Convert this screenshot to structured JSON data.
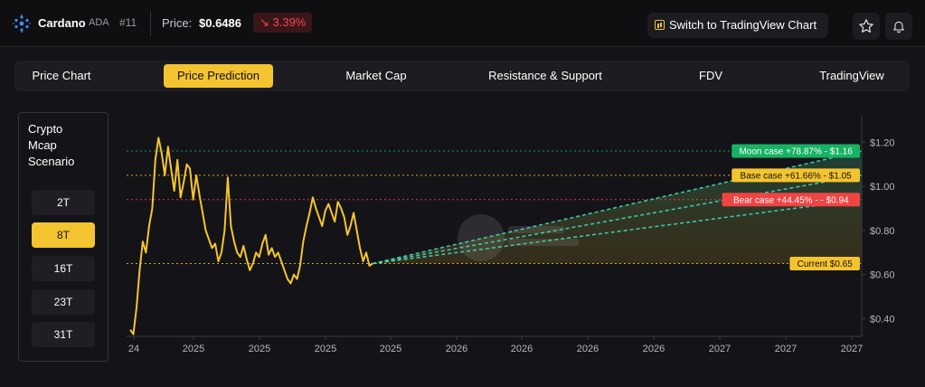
{
  "header": {
    "coin_name": "Cardano",
    "coin_symbol": "ADA",
    "rank": "#11",
    "price_label": "Price:",
    "price_value": "$0.6486",
    "change": "↘ 3.39%",
    "tradingview_button": "Switch to TradingView Chart"
  },
  "tabs": [
    {
      "label": "Price Chart",
      "active": false
    },
    {
      "label": "Price Prediction",
      "active": true
    },
    {
      "label": "Market Cap",
      "active": false
    },
    {
      "label": "Resistance & Support",
      "active": false
    },
    {
      "label": "FDV",
      "active": false
    },
    {
      "label": "TradingView",
      "active": false
    }
  ],
  "scenario": {
    "title_lines": [
      "Crypto",
      "Mcap",
      "Scenario"
    ],
    "options": [
      {
        "label": "2T",
        "active": false
      },
      {
        "label": "8T",
        "active": true
      },
      {
        "label": "16T",
        "active": false
      },
      {
        "label": "23T",
        "active": false
      },
      {
        "label": "31T",
        "active": false
      }
    ]
  },
  "colors": {
    "accent": "#f4c430",
    "price_line": "#f4c430",
    "moon": "#16b364",
    "base": "#f4c430",
    "bear": "#ef4444",
    "current": "#f4c430",
    "down": "#f0454f",
    "background": "#141418"
  },
  "chart_data": {
    "type": "line",
    "x_tick_labels": [
      "24",
      "2025",
      "2025",
      "2025",
      "2025",
      "2026",
      "2026",
      "2026",
      "2026",
      "2027",
      "2027",
      "2027"
    ],
    "y_tick_labels": [
      "$1.20",
      "$1.00",
      "$0.80",
      "$0.60",
      "$0.40"
    ],
    "y_ticks": [
      1.2,
      1.0,
      0.8,
      0.6,
      0.4
    ],
    "ylim": [
      0.32,
      1.32
    ],
    "price_series": [
      0.35,
      0.33,
      0.45,
      0.62,
      0.75,
      0.7,
      0.82,
      0.9,
      1.12,
      1.22,
      1.15,
      1.05,
      1.18,
      1.08,
      0.98,
      1.12,
      0.95,
      1.02,
      1.1,
      1.08,
      0.94,
      1.05,
      0.96,
      0.88,
      0.8,
      0.76,
      0.72,
      0.74,
      0.66,
      0.7,
      0.8,
      1.04,
      0.82,
      0.75,
      0.7,
      0.68,
      0.73,
      0.67,
      0.62,
      0.65,
      0.7,
      0.68,
      0.74,
      0.78,
      0.69,
      0.72,
      0.68,
      0.7,
      0.66,
      0.62,
      0.58,
      0.56,
      0.6,
      0.58,
      0.64,
      0.75,
      0.82,
      0.88,
      0.95,
      0.9,
      0.86,
      0.82,
      0.89,
      0.92,
      0.88,
      0.84,
      0.93,
      0.9,
      0.86,
      0.78,
      0.82,
      0.88,
      0.8,
      0.72,
      0.66,
      0.7,
      0.64,
      0.65
    ],
    "projection_lines": [
      {
        "name": "Moon case",
        "end_value": 1.16
      },
      {
        "name": "Base case",
        "end_value": 1.05
      },
      {
        "name": "Bear case",
        "end_value": 0.94
      }
    ],
    "reference_levels": [
      {
        "label": "Moon case +78.87% - $1.16",
        "value": 1.16,
        "color": "#16b364",
        "text_color": "#ffffff"
      },
      {
        "label": "Base case +61.66% - $1.05",
        "value": 1.05,
        "color": "#f4c430",
        "text_color": "#111111"
      },
      {
        "label": "Bear case +44.45% - - $0.94",
        "value": 0.94,
        "color": "#ef4444",
        "text_color": "#ffffff"
      },
      {
        "label": "Current $0.65",
        "value": 0.65,
        "color": "#f4c430",
        "text_color": "#111111"
      }
    ],
    "grid": false
  }
}
